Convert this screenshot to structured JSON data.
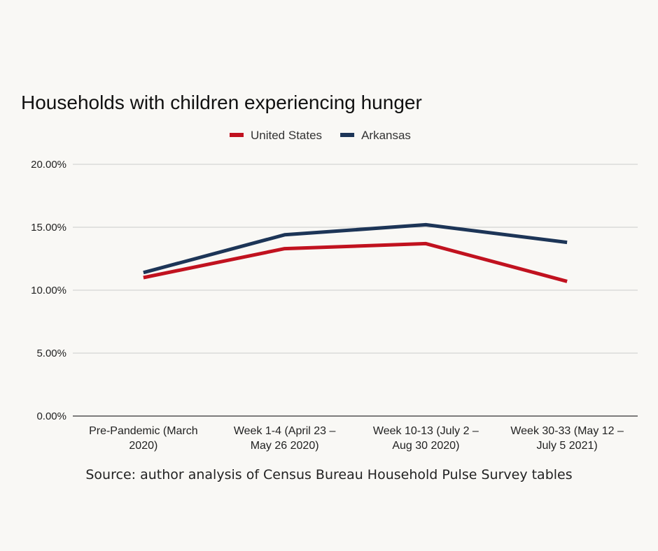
{
  "chart_data": {
    "type": "line",
    "title": "Households with children experiencing hunger",
    "categories": [
      [
        "Pre-Pandemic (March",
        "2020)"
      ],
      [
        "Week 1-4 (April 23 –",
        "May 26 2020)"
      ],
      [
        "Week 10-13 (July 2 –",
        "Aug 30 2020)"
      ],
      [
        "Week 30-33 (May 12 –",
        "July 5 2021)"
      ]
    ],
    "series": [
      {
        "name": "United States",
        "color": "#c1121f",
        "values": [
          11.0,
          13.3,
          13.7,
          10.7
        ]
      },
      {
        "name": "Arkansas",
        "color": "#1d3557",
        "values": [
          11.4,
          14.4,
          15.2,
          13.8
        ]
      }
    ],
    "ylim": [
      0,
      20
    ],
    "yticks": [
      "0.00%",
      "5.00%",
      "10.00%",
      "15.00%",
      "20.00%"
    ],
    "ytick_values": [
      0,
      5,
      10,
      15,
      20
    ],
    "grid": true,
    "legend_position": "top"
  },
  "source": "Source: author analysis of Census Bureau Household Pulse Survey tables"
}
